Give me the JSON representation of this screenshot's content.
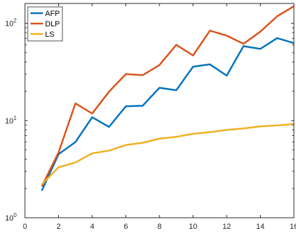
{
  "chart_data": {
    "type": "line",
    "title": "",
    "xlabel": "",
    "ylabel": "",
    "xlim": [
      0,
      16
    ],
    "ylim": [
      1,
      160
    ],
    "y_scale": "log",
    "grid": false,
    "legend_position": "top-left",
    "x_ticks": [
      0,
      2,
      4,
      6,
      8,
      10,
      12,
      14,
      16
    ],
    "x_tick_labels": [
      "0",
      "2",
      "4",
      "6",
      "8",
      "10",
      "12",
      "14",
      "16"
    ],
    "y_ticks": [
      1,
      10,
      100
    ],
    "y_tick_labels": [
      {
        "base": "10",
        "exp": "0"
      },
      {
        "base": "10",
        "exp": "1"
      },
      {
        "base": "10",
        "exp": "2"
      }
    ],
    "x": [
      1,
      2,
      3,
      4,
      5,
      6,
      7,
      8,
      9,
      10,
      11,
      12,
      13,
      14,
      15,
      16
    ],
    "series": [
      {
        "name": "AFP",
        "color": "#0072BD",
        "values": [
          1.9,
          4.5,
          6.0,
          10.8,
          8.6,
          14.0,
          14.2,
          21.7,
          20.5,
          35.8,
          37.8,
          29.0,
          58.3,
          54.6,
          70.5,
          62.5
        ]
      },
      {
        "name": "DLP",
        "color": "#D95319",
        "values": [
          2.1,
          4.7,
          15.0,
          11.8,
          19.8,
          30.0,
          29.3,
          37.2,
          60.0,
          46.7,
          84.0,
          74.7,
          61.6,
          82.0,
          118.0,
          150.0
        ]
      },
      {
        "name": "LS",
        "color": "#EDB120",
        "values": [
          2.2,
          3.3,
          3.7,
          4.6,
          4.9,
          5.6,
          5.9,
          6.5,
          6.8,
          7.3,
          7.6,
          8.0,
          8.3,
          8.7,
          8.9,
          9.2
        ]
      }
    ]
  }
}
